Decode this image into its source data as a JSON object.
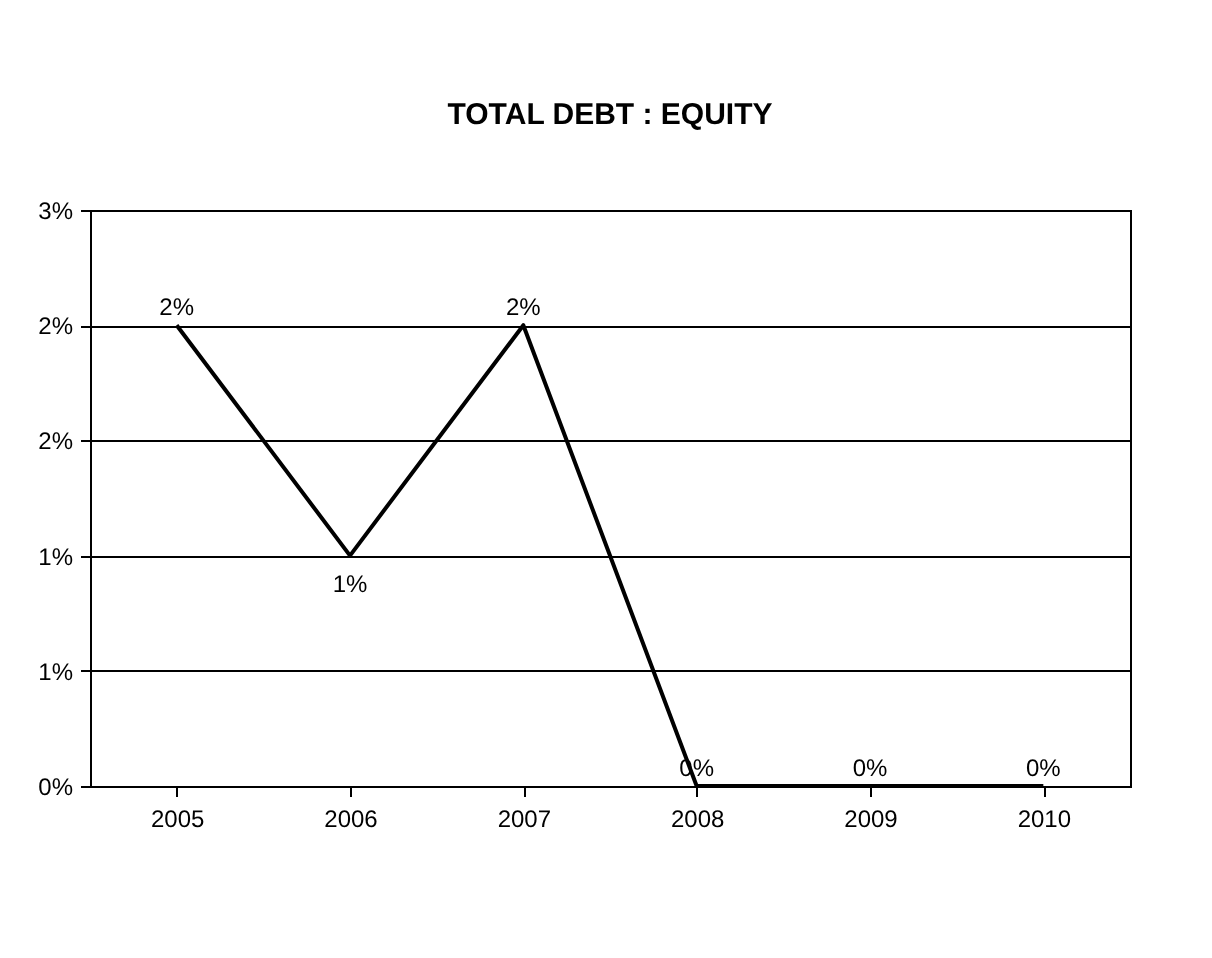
{
  "chart_data": {
    "type": "line",
    "title": "TOTAL DEBT : EQUITY",
    "categories": [
      "2005",
      "2006",
      "2007",
      "2008",
      "2009",
      "2010"
    ],
    "series": [
      {
        "color": "#000000",
        "values": [
          2.0,
          1.0,
          2.0,
          0,
          0,
          0
        ],
        "value_labels": [
          "2%",
          "1%",
          "2%",
          "0%",
          "0%",
          "0%"
        ]
      }
    ],
    "ylim": [
      0,
      2.5
    ],
    "yticks": [
      {
        "value": 0,
        "label": "0%"
      },
      {
        "value": 0.5,
        "label": "1%"
      },
      {
        "value": 1.0,
        "label": "1%"
      },
      {
        "value": 1.5,
        "label": "2%"
      },
      {
        "value": 2.0,
        "label": "2%"
      },
      {
        "value": 2.5,
        "label": "3%"
      }
    ],
    "grid": "y",
    "marker": "none",
    "line_style": "solid"
  }
}
